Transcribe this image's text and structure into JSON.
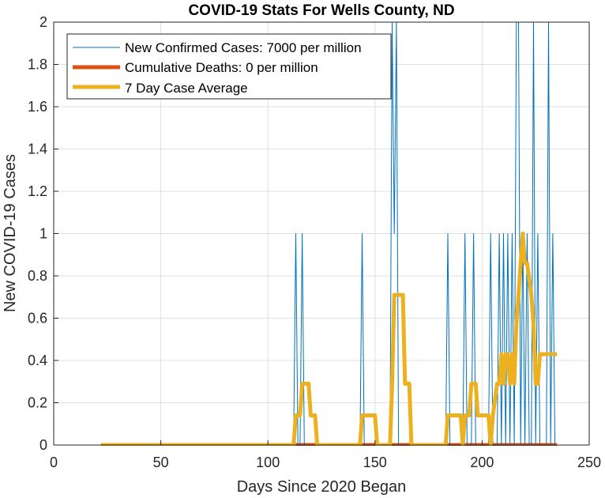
{
  "chart_data": {
    "type": "line",
    "title": "COVID-19 Stats For Wells County, ND",
    "xlabel": "Days Since 2020 Began",
    "ylabel": "New COVID-19 Cases",
    "xlim": [
      0,
      250
    ],
    "ylim": [
      0,
      2
    ],
    "xticks": [
      "0",
      "50",
      "100",
      "150",
      "200",
      "250"
    ],
    "yticks": [
      "0",
      "0.2",
      "0.4",
      "0.6",
      "0.8",
      "1",
      "1.2",
      "1.4",
      "1.6",
      "1.8",
      "2"
    ],
    "grid": true,
    "legend_position": "top-left",
    "series": [
      {
        "name": "New Confirmed Cases: 7000 per million",
        "color": "#0072BD",
        "x": [
          22,
          112,
          113,
          114,
          115,
          116,
          117,
          143,
          144,
          145,
          157,
          158,
          159,
          160,
          161,
          183,
          184,
          185,
          191,
          192,
          193,
          195,
          196,
          197,
          203,
          204,
          205,
          207,
          208,
          209,
          210,
          211,
          212,
          213,
          214,
          215,
          216,
          217,
          218,
          219,
          220,
          221,
          222,
          223,
          224,
          225,
          226,
          227,
          228,
          229,
          230,
          231,
          232,
          233,
          234,
          235
        ],
        "y": [
          0,
          0,
          1,
          0,
          0,
          1,
          0,
          0,
          1,
          0,
          0,
          2,
          1,
          2,
          0,
          0,
          1,
          0,
          0,
          1,
          0,
          0,
          1,
          0,
          0,
          1,
          0,
          0,
          1,
          0,
          1,
          0,
          1,
          0,
          1,
          0,
          2,
          2,
          0,
          1,
          0,
          1,
          0,
          0,
          2,
          0,
          1,
          0,
          0,
          0,
          0,
          2,
          0,
          1,
          0,
          0
        ]
      },
      {
        "name": "Cumulative Deaths: 0 per million",
        "color": "#D95319",
        "x": [
          112,
          235
        ],
        "y": [
          0,
          0
        ]
      },
      {
        "name": "7 Day Case Average",
        "color": "#EDB120",
        "x": [
          22,
          112,
          113,
          115,
          116,
          119,
          120,
          122,
          123,
          143,
          144,
          150,
          151,
          157,
          158,
          159,
          163,
          164,
          166,
          167,
          183,
          184,
          190,
          191,
          192,
          194,
          195,
          197,
          198,
          203,
          204,
          205,
          207,
          208,
          209,
          210,
          211,
          212,
          213,
          214,
          215,
          216,
          217,
          218,
          219,
          220,
          221,
          223,
          224,
          225,
          226,
          227,
          235
        ],
        "y": [
          0,
          0,
          0.14,
          0.14,
          0.29,
          0.29,
          0.14,
          0.14,
          0,
          0,
          0.14,
          0.14,
          0,
          0,
          0.29,
          0.71,
          0.71,
          0.29,
          0.29,
          0,
          0,
          0.14,
          0.14,
          0,
          0.14,
          0.14,
          0.29,
          0.29,
          0.14,
          0.14,
          0,
          0.14,
          0.29,
          0.29,
          0.43,
          0.29,
          0.43,
          0.43,
          0.29,
          0.43,
          0.29,
          0.57,
          0.71,
          0.86,
          1.0,
          0.86,
          0.86,
          0.71,
          0.57,
          0.29,
          0.29,
          0.43,
          0.43
        ]
      }
    ]
  }
}
